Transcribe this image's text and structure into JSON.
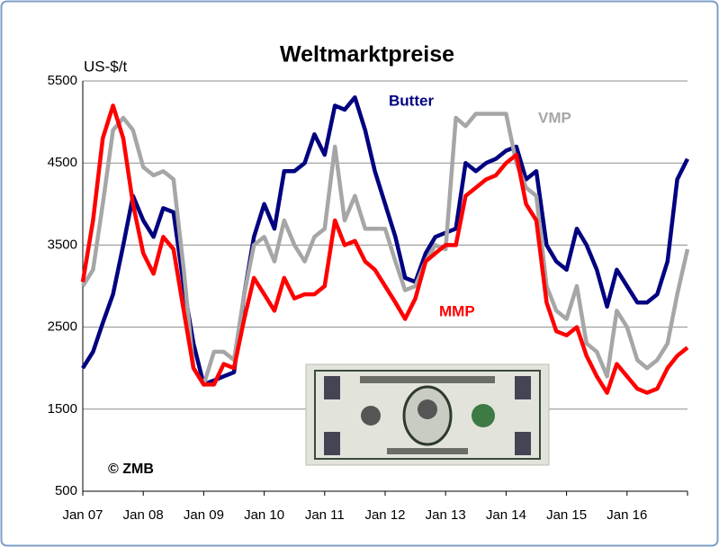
{
  "chart_data": {
    "type": "line",
    "title": "Weltmarktpreise",
    "y_label": "US-$/t",
    "source": "© ZMB",
    "x": [
      2007,
      2007.17,
      2007.33,
      2007.5,
      2007.67,
      2007.83,
      2008,
      2008.17,
      2008.33,
      2008.5,
      2008.67,
      2008.83,
      2009,
      2009.17,
      2009.33,
      2009.5,
      2009.67,
      2009.83,
      2010,
      2010.17,
      2010.33,
      2010.5,
      2010.67,
      2010.83,
      2011,
      2011.17,
      2011.33,
      2011.5,
      2011.67,
      2011.83,
      2012,
      2012.17,
      2012.33,
      2012.5,
      2012.67,
      2012.83,
      2013,
      2013.17,
      2013.33,
      2013.5,
      2013.67,
      2013.83,
      2014,
      2014.17,
      2014.33,
      2014.5,
      2014.67,
      2014.83,
      2015,
      2015.17,
      2015.33,
      2015.5,
      2015.67,
      2015.83,
      2016,
      2016.17,
      2016.33,
      2016.5,
      2016.67,
      2016.83,
      2017
    ],
    "series": [
      {
        "name": "Butter",
        "color": "#000080",
        "values": [
          2000,
          2200,
          2550,
          2900,
          3500,
          4100,
          3800,
          3600,
          3950,
          3900,
          3000,
          2300,
          1800,
          1850,
          1900,
          1950,
          2900,
          3600,
          4000,
          3700,
          4400,
          4400,
          4500,
          4850,
          4600,
          5200,
          5150,
          5300,
          4900,
          4400,
          4000,
          3600,
          3100,
          3050,
          3400,
          3600,
          3650,
          3700,
          4500,
          4400,
          4500,
          4550,
          4650,
          4700,
          4300,
          4400,
          3500,
          3300,
          3200,
          3700,
          3500,
          3200,
          2750,
          3200,
          3000,
          2800,
          2800,
          2900,
          3300,
          4300,
          4550
        ]
      },
      {
        "name": "VMP",
        "color": "#a6a6a6",
        "values": [
          3000,
          3200,
          4000,
          4900,
          5050,
          4900,
          4450,
          4350,
          4400,
          4300,
          3200,
          2000,
          1800,
          2200,
          2200,
          2100,
          2900,
          3500,
          3600,
          3300,
          3800,
          3500,
          3300,
          3600,
          3700,
          4700,
          3800,
          4100,
          3700,
          3700,
          3700,
          3300,
          2950,
          3000,
          3300,
          3500,
          3450,
          5050,
          4950,
          5100,
          5100,
          5100,
          5100,
          4500,
          4200,
          4100,
          3000,
          2700,
          2600,
          3000,
          2300,
          2200,
          1900,
          2700,
          2500,
          2100,
          2000,
          2100,
          2300,
          2900,
          3450
        ]
      },
      {
        "name": "MMP",
        "color": "#ff0000",
        "values": [
          3050,
          3800,
          4800,
          5200,
          4800,
          4000,
          3400,
          3150,
          3600,
          3450,
          2700,
          2000,
          1800,
          1800,
          2050,
          2000,
          2600,
          3100,
          2900,
          2700,
          3100,
          2850,
          2900,
          2900,
          3000,
          3800,
          3500,
          3550,
          3300,
          3200,
          3000,
          2800,
          2600,
          2850,
          3300,
          3400,
          3500,
          3500,
          4100,
          4200,
          4300,
          4350,
          4500,
          4600,
          4000,
          3800,
          2800,
          2450,
          2400,
          2500,
          2150,
          1900,
          1700,
          2050,
          1900,
          1750,
          1700,
          1750,
          2000,
          2150,
          2250
        ]
      }
    ],
    "xlim": [
      2007,
      2017
    ],
    "xticks": [
      {
        "value": 2007,
        "label": "Jan 07"
      },
      {
        "value": 2008,
        "label": "Jan 08"
      },
      {
        "value": 2009,
        "label": "Jan 09"
      },
      {
        "value": 2010,
        "label": "Jan 10"
      },
      {
        "value": 2011,
        "label": "Jan 11"
      },
      {
        "value": 2012,
        "label": "Jan 12"
      },
      {
        "value": 2013,
        "label": "Jan 13"
      },
      {
        "value": 2014,
        "label": "Jan 14"
      },
      {
        "value": 2015,
        "label": "Jan 15"
      },
      {
        "value": 2016,
        "label": "Jan 16"
      }
    ],
    "ylim": [
      500,
      5500
    ],
    "yticks": [
      500,
      1500,
      2500,
      3500,
      4500,
      5500
    ],
    "grid": true
  }
}
